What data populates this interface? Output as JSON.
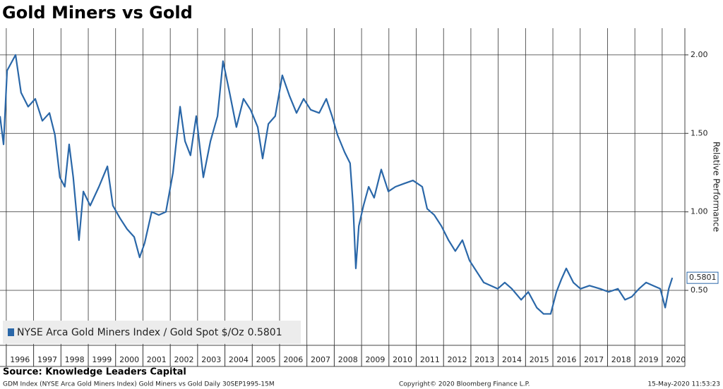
{
  "chart_data": {
    "type": "line",
    "title": "Gold Miners vs Gold",
    "y_axis_label": "Relative Performance",
    "x": [
      1995.77,
      1995.9,
      1996.03,
      1996.34,
      1996.54,
      1996.8,
      1997.06,
      1997.32,
      1997.58,
      1997.78,
      1997.96,
      1998.14,
      1998.3,
      1998.45,
      1998.66,
      1998.82,
      1999.07,
      1999.39,
      1999.7,
      1999.9,
      2000.16,
      2000.42,
      2000.68,
      2000.88,
      2001.06,
      2001.32,
      2001.58,
      2001.84,
      2002.1,
      2002.36,
      2002.54,
      2002.74,
      2002.95,
      2003.21,
      2003.47,
      2003.73,
      2003.93,
      2004.17,
      2004.42,
      2004.68,
      2004.94,
      2005.2,
      2005.38,
      2005.59,
      2005.84,
      2006.1,
      2006.36,
      2006.62,
      2006.88,
      2007.14,
      2007.45,
      2007.71,
      2007.92,
      2008.12,
      2008.38,
      2008.58,
      2008.69,
      2008.79,
      2008.9,
      2009.07,
      2009.26,
      2009.46,
      2009.72,
      2009.98,
      2010.24,
      2010.55,
      2010.88,
      2011.22,
      2011.4,
      2011.66,
      2011.92,
      2012.18,
      2012.43,
      2012.69,
      2012.95,
      2013.21,
      2013.47,
      2013.73,
      2013.98,
      2014.24,
      2014.5,
      2014.84,
      2015.1,
      2015.41,
      2015.66,
      2015.92,
      2016.13,
      2016.31,
      2016.49,
      2016.75,
      2017.01,
      2017.34,
      2017.73,
      2018.04,
      2018.38,
      2018.64,
      2018.89,
      2019.15,
      2019.41,
      2019.67,
      2019.93,
      2020.11,
      2020.24,
      2020.37
    ],
    "series": [
      {
        "name": "NYSE Arca Gold Miners Index / Gold Spot $/Oz",
        "last_value": 0.5801,
        "color": "#2a67a8",
        "values": [
          1.61,
          1.43,
          1.9,
          2.0,
          1.76,
          1.67,
          1.72,
          1.58,
          1.63,
          1.49,
          1.22,
          1.16,
          1.43,
          1.22,
          0.82,
          1.13,
          1.04,
          1.16,
          1.29,
          1.04,
          0.96,
          0.89,
          0.84,
          0.71,
          0.8,
          1.0,
          0.98,
          1.0,
          1.25,
          1.67,
          1.45,
          1.36,
          1.61,
          1.22,
          1.45,
          1.61,
          1.96,
          1.76,
          1.54,
          1.72,
          1.65,
          1.54,
          1.34,
          1.56,
          1.61,
          1.87,
          1.74,
          1.63,
          1.72,
          1.65,
          1.63,
          1.72,
          1.61,
          1.49,
          1.38,
          1.31,
          1.04,
          0.64,
          0.91,
          1.04,
          1.16,
          1.09,
          1.27,
          1.13,
          1.16,
          1.18,
          1.2,
          1.16,
          1.02,
          0.98,
          0.91,
          0.82,
          0.75,
          0.82,
          0.69,
          0.62,
          0.55,
          0.53,
          0.51,
          0.55,
          0.51,
          0.44,
          0.49,
          0.39,
          0.35,
          0.35,
          0.49,
          0.57,
          0.64,
          0.55,
          0.51,
          0.53,
          0.51,
          0.49,
          0.51,
          0.44,
          0.46,
          0.51,
          0.55,
          0.53,
          0.51,
          0.39,
          0.51,
          0.5801
        ]
      }
    ],
    "xlim": [
      1995.77,
      2020.83
    ],
    "xticks": [
      1996,
      1997,
      1998,
      1999,
      2000,
      2001,
      2002,
      2003,
      2004,
      2005,
      2006,
      2007,
      2008,
      2009,
      2010,
      2011,
      2012,
      2013,
      2014,
      2015,
      2016,
      2017,
      2018,
      2019,
      2020
    ],
    "ylim": [
      0.15,
      2.17
    ],
    "yticks": [
      {
        "value": 0.5,
        "label": "0.50"
      },
      {
        "value": 1,
        "label": "1.00"
      },
      {
        "value": 1.5,
        "label": "1.50"
      },
      {
        "value": 2,
        "label": "2.00"
      }
    ],
    "grid": true,
    "legend": "bottom-left"
  },
  "footer": {
    "source": "Source: Knowledge Leaders Capital",
    "description": "GDM Index (NYSE Arca Gold Miners Index) Gold Miners vs Gold  Daily 30SEP1995-15M",
    "copyright": "Copyright© 2020 Bloomberg Finance L.P.",
    "timestamp": "15-May-2020 11:53:23"
  }
}
